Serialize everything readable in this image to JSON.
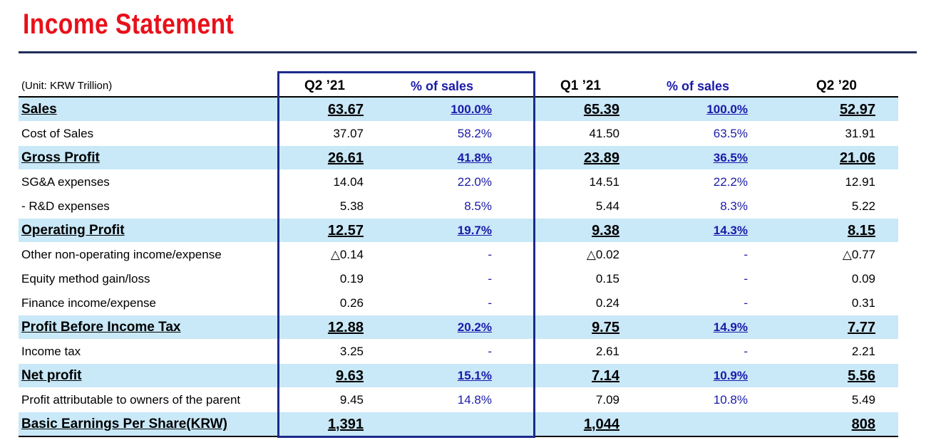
{
  "title": "Income Statement",
  "unit": "(Unit: KRW Trillion)",
  "columns": [
    "Q2 ’21",
    "% of sales",
    "Q1 ’21",
    "% of sales",
    "Q2 ’20"
  ],
  "rows": [
    {
      "label": "Sales",
      "highlight": true,
      "values": [
        "63.67",
        "100.0%",
        "65.39",
        "100.0%",
        "52.97"
      ]
    },
    {
      "label": "Cost of Sales",
      "highlight": false,
      "values": [
        "37.07",
        "58.2%",
        "41.50",
        "63.5%",
        "31.91"
      ]
    },
    {
      "label": "Gross Profit",
      "highlight": true,
      "values": [
        "26.61",
        "41.8%",
        "23.89",
        "36.5%",
        "21.06"
      ]
    },
    {
      "label": "SG&A expenses",
      "highlight": false,
      "values": [
        "14.04",
        "22.0%",
        "14.51",
        "22.2%",
        "12.91"
      ]
    },
    {
      "label": " - R&D expenses",
      "highlight": false,
      "values": [
        "5.38",
        "8.5%",
        "5.44",
        "8.3%",
        "5.22"
      ]
    },
    {
      "label": "Operating Profit",
      "highlight": true,
      "values": [
        "12.57",
        "19.7%",
        "9.38",
        "14.3%",
        "8.15"
      ]
    },
    {
      "label": "Other non-operating income/expense",
      "highlight": false,
      "values": [
        "△0.14",
        "-",
        "△0.02",
        "-",
        "△0.77"
      ]
    },
    {
      "label": "Equity method gain/loss",
      "highlight": false,
      "values": [
        "0.19",
        "-",
        "0.15",
        "-",
        "0.09"
      ]
    },
    {
      "label": "Finance income/expense",
      "highlight": false,
      "values": [
        "0.26",
        "-",
        "0.24",
        "-",
        "0.31"
      ]
    },
    {
      "label": "Profit Before Income Tax",
      "highlight": true,
      "values": [
        "12.88",
        "20.2%",
        "9.75",
        "14.9%",
        "7.77"
      ]
    },
    {
      "label": "Income tax",
      "highlight": false,
      "values": [
        "3.25",
        "-",
        "2.61",
        "-",
        "2.21"
      ]
    },
    {
      "label": "Net profit",
      "highlight": true,
      "values": [
        "9.63",
        "15.1%",
        "7.14",
        "10.9%",
        "5.56"
      ]
    },
    {
      "label": "Profit attributable to owners of the parent",
      "highlight": false,
      "values": [
        "9.45",
        "14.8%",
        "7.09",
        "10.8%",
        "5.49"
      ]
    },
    {
      "label": "Basic Earnings Per Share(KRW)",
      "highlight": true,
      "values": [
        "1,391",
        "",
        "1,044",
        "",
        "808"
      ]
    }
  ]
}
